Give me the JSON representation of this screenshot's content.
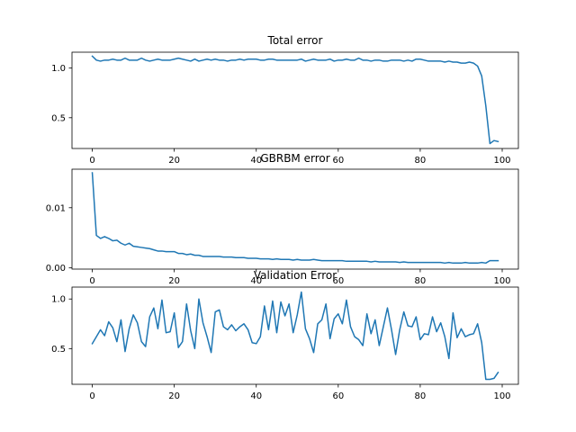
{
  "figure": {
    "line_color": "#1f77b4"
  },
  "chart_data": [
    {
      "type": "line",
      "title": "Total error",
      "xlabel": "",
      "ylabel": "",
      "xlim": [
        -4.95,
        103.95
      ],
      "ylim": [
        0.19,
        1.16
      ],
      "xticks": [
        0,
        20,
        40,
        60,
        80,
        100
      ],
      "xtick_labels": [
        "0",
        "20",
        "40",
        "60",
        "80",
        "100"
      ],
      "yticks": [
        0.5,
        1.0
      ],
      "ytick_labels": [
        "0.5",
        "1.0"
      ],
      "grid": false,
      "series": [
        {
          "values": [
            1.12,
            1.08,
            1.07,
            1.08,
            1.08,
            1.09,
            1.08,
            1.08,
            1.1,
            1.08,
            1.08,
            1.08,
            1.1,
            1.08,
            1.07,
            1.08,
            1.09,
            1.08,
            1.08,
            1.08,
            1.09,
            1.1,
            1.09,
            1.08,
            1.07,
            1.09,
            1.07,
            1.08,
            1.09,
            1.08,
            1.09,
            1.08,
            1.08,
            1.07,
            1.08,
            1.08,
            1.09,
            1.08,
            1.09,
            1.09,
            1.09,
            1.08,
            1.08,
            1.09,
            1.09,
            1.08,
            1.08,
            1.08,
            1.08,
            1.08,
            1.08,
            1.09,
            1.07,
            1.08,
            1.09,
            1.08,
            1.08,
            1.08,
            1.09,
            1.07,
            1.08,
            1.08,
            1.09,
            1.08,
            1.08,
            1.1,
            1.08,
            1.08,
            1.07,
            1.08,
            1.08,
            1.07,
            1.07,
            1.08,
            1.08,
            1.08,
            1.07,
            1.08,
            1.07,
            1.09,
            1.09,
            1.08,
            1.07,
            1.07,
            1.07,
            1.07,
            1.06,
            1.07,
            1.06,
            1.06,
            1.05,
            1.05,
            1.06,
            1.05,
            1.02,
            0.92,
            0.62,
            0.24,
            0.27,
            0.26
          ]
        }
      ]
    },
    {
      "type": "line",
      "title": "GBRBM error",
      "xlabel": "",
      "ylabel": "",
      "xlim": [
        -4.95,
        103.95
      ],
      "ylim": [
        -0.0002,
        0.0164
      ],
      "xticks": [
        0,
        20,
        40,
        60,
        80,
        100
      ],
      "xtick_labels": [
        "0",
        "20",
        "40",
        "60",
        "80",
        "100"
      ],
      "yticks": [
        0.0,
        0.01
      ],
      "ytick_labels": [
        "0.00",
        "0.01"
      ],
      "grid": false,
      "series": [
        {
          "values": [
            0.0158,
            0.0054,
            0.0049,
            0.0052,
            0.0049,
            0.0045,
            0.0046,
            0.0041,
            0.0038,
            0.0041,
            0.0036,
            0.0035,
            0.0034,
            0.0033,
            0.0032,
            0.003,
            0.0028,
            0.0028,
            0.0027,
            0.0027,
            0.0027,
            0.0024,
            0.0024,
            0.0022,
            0.0023,
            0.0021,
            0.0021,
            0.0019,
            0.0019,
            0.0019,
            0.0019,
            0.0019,
            0.0018,
            0.0018,
            0.0018,
            0.0017,
            0.0017,
            0.0017,
            0.0016,
            0.0016,
            0.0016,
            0.0015,
            0.0015,
            0.0015,
            0.0014,
            0.0015,
            0.0014,
            0.0014,
            0.0014,
            0.0013,
            0.0014,
            0.0013,
            0.0013,
            0.0013,
            0.0014,
            0.0013,
            0.0012,
            0.0012,
            0.0012,
            0.0012,
            0.0012,
            0.0012,
            0.0011,
            0.0011,
            0.0011,
            0.0011,
            0.0011,
            0.0011,
            0.001,
            0.0011,
            0.001,
            0.001,
            0.001,
            0.001,
            0.001,
            0.0009,
            0.001,
            0.0009,
            0.0009,
            0.0009,
            0.0009,
            0.0009,
            0.0009,
            0.0009,
            0.0009,
            0.0009,
            0.0008,
            0.0009,
            0.0008,
            0.0008,
            0.0008,
            0.0009,
            0.0008,
            0.0008,
            0.0008,
            0.0009,
            0.0008,
            0.0012,
            0.0012,
            0.0012
          ]
        }
      ]
    },
    {
      "type": "line",
      "title": "Validation Error",
      "xlabel": "",
      "ylabel": "",
      "xlim": [
        -4.95,
        103.95
      ],
      "ylim": [
        0.14,
        1.12
      ],
      "xticks": [
        0,
        20,
        40,
        60,
        80,
        100
      ],
      "xtick_labels": [
        "0",
        "20",
        "40",
        "60",
        "80",
        "100"
      ],
      "yticks": [
        0.5,
        1.0
      ],
      "ytick_labels": [
        "0.5",
        "1.0"
      ],
      "grid": false,
      "series": [
        {
          "values": [
            0.55,
            0.62,
            0.69,
            0.63,
            0.77,
            0.71,
            0.57,
            0.79,
            0.47,
            0.7,
            0.84,
            0.76,
            0.57,
            0.52,
            0.82,
            0.91,
            0.7,
            0.99,
            0.66,
            0.67,
            0.86,
            0.51,
            0.57,
            0.95,
            0.68,
            0.5,
            1.0,
            0.76,
            0.62,
            0.46,
            0.87,
            0.89,
            0.72,
            0.69,
            0.74,
            0.68,
            0.72,
            0.75,
            0.69,
            0.56,
            0.55,
            0.62,
            0.93,
            0.69,
            0.98,
            0.66,
            0.97,
            0.83,
            0.95,
            0.66,
            0.84,
            1.07,
            0.7,
            0.6,
            0.46,
            0.75,
            0.79,
            0.95,
            0.6,
            0.8,
            0.85,
            0.75,
            0.99,
            0.72,
            0.62,
            0.59,
            0.53,
            0.85,
            0.65,
            0.79,
            0.53,
            0.72,
            0.91,
            0.69,
            0.44,
            0.69,
            0.87,
            0.73,
            0.72,
            0.82,
            0.59,
            0.65,
            0.64,
            0.82,
            0.67,
            0.76,
            0.62,
            0.4,
            0.86,
            0.61,
            0.7,
            0.62,
            0.64,
            0.65,
            0.75,
            0.56,
            0.19,
            0.19,
            0.2,
            0.26
          ]
        }
      ]
    }
  ]
}
